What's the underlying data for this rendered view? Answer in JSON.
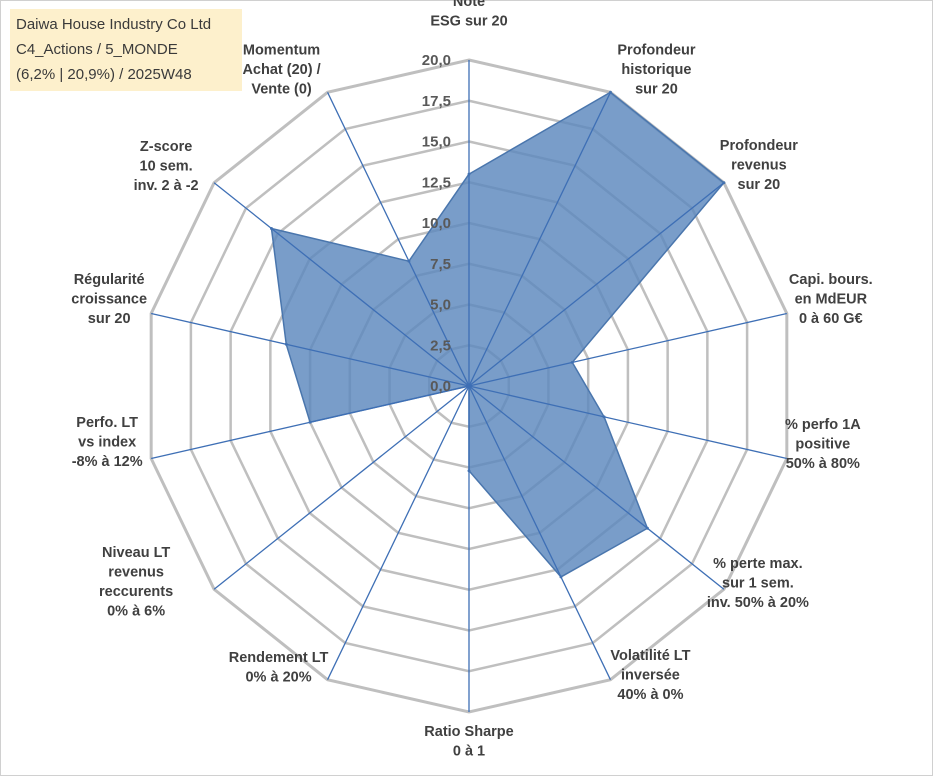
{
  "header": {
    "line1": "Daiwa House Industry Co Ltd",
    "line2": "C4_Actions / 5_MONDE",
    "line3": "(6,2% | 20,9%) / 2025W48"
  },
  "colors": {
    "fill": "#5b87bd",
    "stroke": "#4a76ad",
    "spoke": "#3e6fb5",
    "grid": "#bfbfbf",
    "title_bg": "#fdf0cc"
  },
  "chart_data": {
    "type": "radar",
    "range": [
      0,
      20
    ],
    "tick_values": [
      0,
      2.5,
      5,
      7.5,
      10,
      12.5,
      15,
      17.5,
      20
    ],
    "tick_labels": [
      "0,0",
      "2,5",
      "5,0",
      "7,5",
      "10,0",
      "12,5",
      "15,0",
      "17,5",
      "20,0"
    ],
    "axes": [
      {
        "lines": [
          "Note",
          "ESG sur 20"
        ]
      },
      {
        "lines": [
          "Profondeur",
          "historique",
          "sur 20"
        ]
      },
      {
        "lines": [
          "Profondeur",
          "revenus",
          "sur 20"
        ]
      },
      {
        "lines": [
          "Capi. bours.",
          "en MdEUR",
          "0 à 60 G€"
        ]
      },
      {
        "lines": [
          "% perfo 1A",
          "positive",
          "50% à 80%"
        ]
      },
      {
        "lines": [
          "% perte max.",
          "sur 1 sem.",
          "inv. 50% à 20%"
        ]
      },
      {
        "lines": [
          "Volatilité LT",
          "inversée",
          "40% à 0%"
        ]
      },
      {
        "lines": [
          "Ratio Sharpe",
          "0 à 1"
        ]
      },
      {
        "lines": [
          "Rendement LT",
          "0% à 20%"
        ]
      },
      {
        "lines": [
          "Niveau LT",
          "revenus",
          "reccurents",
          "0% à 6%"
        ]
      },
      {
        "lines": [
          "Perfo. LT",
          "vs index",
          "-8% à 12%"
        ]
      },
      {
        "lines": [
          "Régularité",
          "croissance",
          "sur 20"
        ]
      },
      {
        "lines": [
          "Z-score",
          "10 sem.",
          "inv. 2 à -2"
        ]
      },
      {
        "lines": [
          "Momentum",
          "Achat (20) /",
          "Vente (0)"
        ]
      }
    ],
    "series": [
      {
        "name": "Daiwa House Industry Co Ltd",
        "values": [
          13,
          20,
          20,
          6.5,
          8.5,
          14,
          13,
          5.2,
          0,
          0,
          10,
          11.5,
          15.5,
          8.5
        ]
      }
    ]
  }
}
